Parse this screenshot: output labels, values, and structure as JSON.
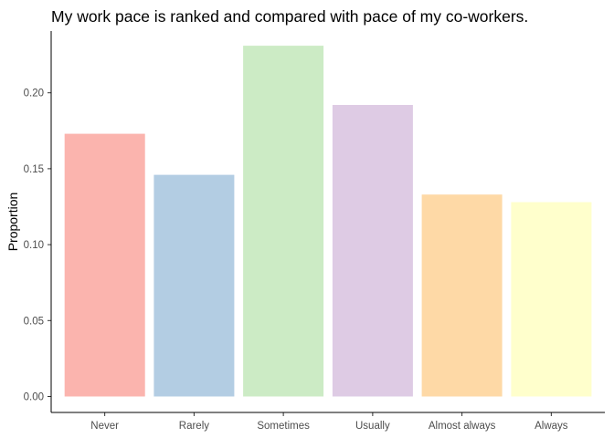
{
  "chart_data": {
    "type": "bar",
    "title": "My work pace is ranked and compared with pace of my co-workers.",
    "xlabel": "",
    "ylabel": "Proportion",
    "categories": [
      "Never",
      "Rarely",
      "Sometimes",
      "Usually",
      "Almost always",
      "Always"
    ],
    "values": [
      0.173,
      0.146,
      0.231,
      0.192,
      0.133,
      0.128
    ],
    "colors": [
      "#FBB4AE",
      "#B3CDE3",
      "#CCEBC5",
      "#DECBE4",
      "#FED9A6",
      "#FFFFCC"
    ],
    "ylim": [
      0,
      0.24
    ],
    "yticks": [
      0.0,
      0.05,
      0.1,
      0.15,
      0.2
    ],
    "ytick_labels": [
      "0.00",
      "0.05",
      "0.10",
      "0.15",
      "0.20"
    ],
    "grid": false,
    "legend": "none"
  }
}
